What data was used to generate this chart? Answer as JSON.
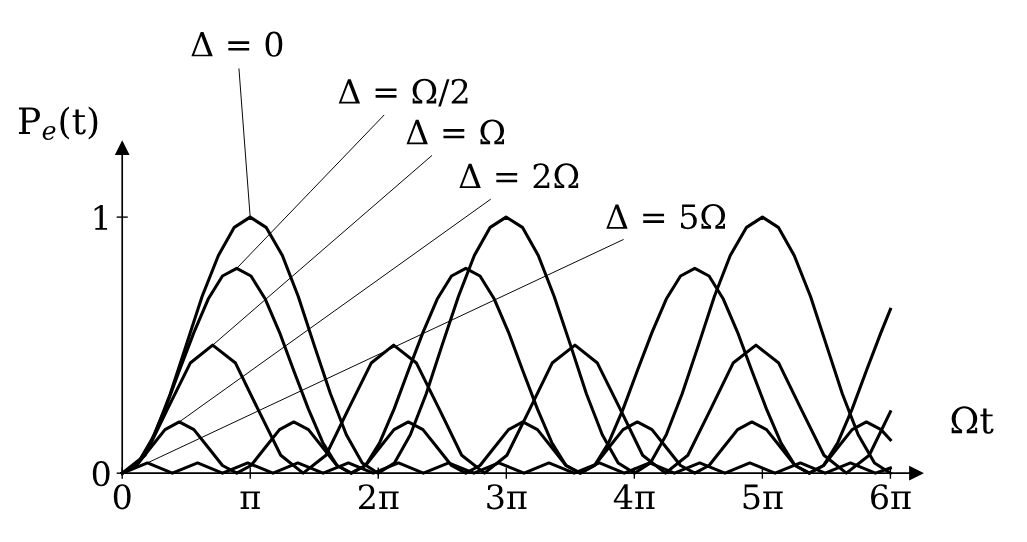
{
  "chart_data": {
    "type": "line",
    "xlabel": "Ωt",
    "ylabel": "P$_{e}$(t)",
    "xlim": [
      0,
      19.48
    ],
    "ylim": [
      0,
      1.27
    ],
    "xticks": [
      0,
      {
        "value": 3.1416,
        "label": "π"
      },
      {
        "value": 6.2832,
        "label": "2π"
      },
      {
        "value": 9.4248,
        "label": "3π"
      },
      {
        "value": 12.5664,
        "label": "4π"
      },
      {
        "value": 15.708,
        "label": "5π"
      },
      {
        "value": 18.8496,
        "label": "6π"
      }
    ],
    "yticks": [
      0,
      1
    ],
    "grid": false,
    "legend": false,
    "marker": "none",
    "line_style": "solid",
    "series": [
      {
        "name": "Δ = 0",
        "color": "#000000",
        "x": [
          0,
          0.39,
          0.79,
          1.18,
          1.57,
          1.96,
          2.36,
          2.75,
          3.14,
          3.53,
          3.93,
          4.32,
          4.71,
          5.11,
          5.5,
          5.89,
          6.28,
          6.68,
          7.07,
          7.46,
          7.85,
          8.25,
          8.64,
          9.03,
          9.42,
          9.82,
          10.21,
          10.6,
          11.0,
          11.39,
          11.78,
          12.17,
          12.57,
          12.96,
          13.35,
          13.74,
          14.14,
          14.53,
          14.92,
          15.32,
          15.71,
          16.1,
          16.49,
          16.89,
          17.28,
          17.67,
          18.06,
          18.46,
          18.85
        ],
        "values": [
          0,
          0.04,
          0.15,
          0.31,
          0.5,
          0.69,
          0.85,
          0.96,
          1,
          0.96,
          0.85,
          0.69,
          0.5,
          0.31,
          0.15,
          0.04,
          0,
          0.04,
          0.15,
          0.31,
          0.5,
          0.69,
          0.85,
          0.96,
          1,
          0.96,
          0.85,
          0.69,
          0.5,
          0.31,
          0.15,
          0.04,
          0,
          0.04,
          0.15,
          0.31,
          0.5,
          0.69,
          0.85,
          0.96,
          1,
          0.96,
          0.85,
          0.69,
          0.5,
          0.31,
          0.15,
          0.04,
          0
        ]
      },
      {
        "name": "Δ = Ω/2",
        "color": "#000000",
        "x": [
          0,
          0.35,
          0.7,
          1.05,
          1.4,
          1.76,
          2.11,
          2.46,
          2.81,
          3.16,
          3.51,
          3.86,
          4.21,
          4.57,
          4.92,
          5.27,
          5.62,
          5.97,
          6.32,
          6.67,
          7.02,
          7.38,
          7.73,
          8.08,
          8.43,
          8.78,
          9.13,
          9.48,
          9.83,
          10.19,
          10.54,
          10.89,
          11.24,
          11.59,
          11.94,
          12.29,
          12.64,
          13.0,
          13.35,
          13.7,
          14.05,
          14.4,
          14.75,
          15.1,
          15.45,
          15.81,
          16.16,
          16.51,
          16.86,
          17.21,
          17.56,
          17.91,
          18.26,
          18.62,
          18.85
        ],
        "values": [
          0,
          0.03,
          0.12,
          0.25,
          0.4,
          0.55,
          0.68,
          0.77,
          0.8,
          0.77,
          0.68,
          0.55,
          0.4,
          0.25,
          0.12,
          0.03,
          0,
          0.03,
          0.12,
          0.25,
          0.4,
          0.55,
          0.68,
          0.77,
          0.8,
          0.77,
          0.68,
          0.55,
          0.4,
          0.25,
          0.12,
          0.03,
          0,
          0.03,
          0.12,
          0.25,
          0.4,
          0.55,
          0.68,
          0.77,
          0.8,
          0.77,
          0.68,
          0.55,
          0.4,
          0.25,
          0.12,
          0.03,
          0,
          0.03,
          0.12,
          0.25,
          0.4,
          0.55,
          0.64
        ]
      },
      {
        "name": "Δ = Ω",
        "color": "#000000",
        "x": [
          0,
          0.56,
          1.11,
          1.67,
          2.22,
          2.78,
          3.33,
          3.89,
          4.44,
          5.0,
          5.55,
          6.11,
          6.66,
          7.22,
          7.78,
          8.33,
          8.89,
          9.44,
          10.0,
          10.55,
          11.11,
          11.66,
          12.22,
          12.77,
          13.33,
          13.88,
          14.44,
          14.99,
          15.55,
          16.11,
          16.66,
          17.22,
          17.77,
          18.33,
          18.85
        ],
        "values": [
          0,
          0.07,
          0.25,
          0.43,
          0.5,
          0.43,
          0.25,
          0.07,
          0,
          0.07,
          0.25,
          0.43,
          0.5,
          0.43,
          0.25,
          0.07,
          0,
          0.07,
          0.25,
          0.43,
          0.5,
          0.43,
          0.25,
          0.07,
          0,
          0.07,
          0.25,
          0.43,
          0.5,
          0.43,
          0.25,
          0.07,
          0,
          0.07,
          0.24
        ]
      },
      {
        "name": "Δ = 2Ω",
        "color": "#000000",
        "x": [
          0,
          0.35,
          0.7,
          1.05,
          1.4,
          1.76,
          2.11,
          2.46,
          2.81,
          3.16,
          3.51,
          3.86,
          4.21,
          4.57,
          4.92,
          5.27,
          5.62,
          5.97,
          6.32,
          6.67,
          7.02,
          7.38,
          7.73,
          8.08,
          8.43,
          8.78,
          9.13,
          9.48,
          9.83,
          10.19,
          10.54,
          10.89,
          11.24,
          11.59,
          11.94,
          12.29,
          12.64,
          13.0,
          13.35,
          13.7,
          14.05,
          14.4,
          14.75,
          15.1,
          15.45,
          15.81,
          16.16,
          16.51,
          16.86,
          17.21,
          17.56,
          17.91,
          18.26,
          18.62,
          18.85
        ],
        "values": [
          0,
          0.03,
          0.1,
          0.17,
          0.2,
          0.17,
          0.1,
          0.03,
          0,
          0.03,
          0.1,
          0.17,
          0.2,
          0.17,
          0.1,
          0.03,
          0,
          0.03,
          0.1,
          0.17,
          0.2,
          0.17,
          0.1,
          0.03,
          0,
          0.03,
          0.1,
          0.17,
          0.2,
          0.17,
          0.1,
          0.03,
          0,
          0.03,
          0.1,
          0.17,
          0.2,
          0.17,
          0.1,
          0.03,
          0,
          0.03,
          0.1,
          0.17,
          0.2,
          0.17,
          0.1,
          0.03,
          0,
          0.03,
          0.1,
          0.17,
          0.2,
          0.17,
          0.13
        ]
      },
      {
        "name": "Δ = 5Ω",
        "color": "#000000",
        "x": [
          0,
          0.62,
          1.23,
          1.85,
          2.46,
          3.08,
          3.7,
          4.31,
          4.93,
          5.55,
          6.16,
          6.78,
          7.39,
          8.01,
          8.63,
          9.24,
          9.86,
          10.47,
          11.09,
          11.71,
          12.32,
          12.94,
          13.55,
          14.17,
          14.79,
          15.4,
          16.02,
          16.64,
          17.25,
          17.87,
          18.48,
          18.85
        ],
        "values": [
          0,
          0.04,
          0,
          0.04,
          0,
          0.04,
          0,
          0.04,
          0,
          0.04,
          0,
          0.04,
          0,
          0.04,
          0,
          0.04,
          0,
          0.04,
          0,
          0.04,
          0,
          0.04,
          0,
          0.04,
          0,
          0.04,
          0,
          0.04,
          0,
          0.04,
          0,
          0.02
        ]
      }
    ]
  }
}
